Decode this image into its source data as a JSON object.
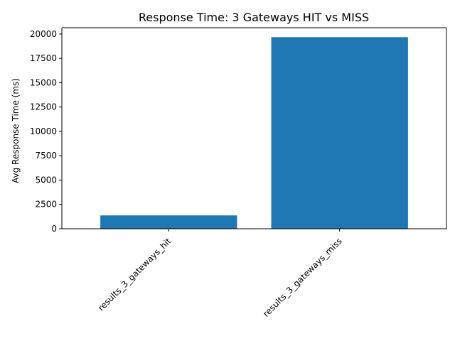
{
  "chart_data": {
    "type": "bar",
    "title": "Response Time: 3 Gateways HIT vs MISS",
    "xlabel": "",
    "ylabel": "Avg Response Time (ms)",
    "categories": [
      "results_3_gateways_hit",
      "results_3_gateways_miss"
    ],
    "values": [
      1370,
      19680
    ],
    "ylim": [
      0,
      20650
    ],
    "yticks": [
      0,
      2500,
      5000,
      7500,
      10000,
      12500,
      15000,
      17500,
      20000
    ],
    "ytick_labels": [
      "0",
      "2500",
      "5000",
      "7500",
      "10000",
      "12500",
      "15000",
      "17500",
      "20000"
    ],
    "bar_color": "#1f77b4",
    "grid": false,
    "legend": "none"
  }
}
